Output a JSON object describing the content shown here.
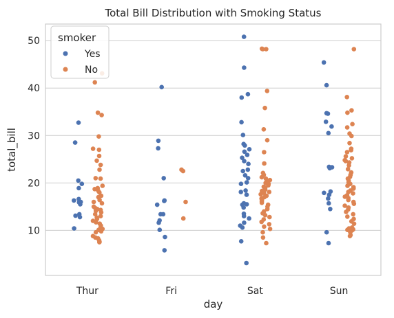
{
  "chart_data": {
    "type": "scatter",
    "subtype": "strip",
    "title": "Total Bill Distribution with Smoking Status",
    "xlabel": "day",
    "ylabel": "total_bill",
    "categories": [
      "Thur",
      "Fri",
      "Sat",
      "Sun"
    ],
    "ylim": [
      0.5,
      53.5
    ],
    "yticks": [
      10,
      20,
      30,
      40,
      50
    ],
    "grid": true,
    "grid_axis": "y",
    "legend": {
      "title": "smoker",
      "placement": "top-left",
      "entries": [
        "Yes",
        "No"
      ]
    },
    "series": [
      {
        "name": "Yes",
        "color": "#4c72b0",
        "points": [
          [
            "Thur",
            32.7
          ],
          [
            "Thur",
            28.5
          ],
          [
            "Thur",
            20.5
          ],
          [
            "Thur",
            19.8
          ],
          [
            "Thur",
            18.9
          ],
          [
            "Thur",
            16.6
          ],
          [
            "Thur",
            16.3
          ],
          [
            "Thur",
            16.0
          ],
          [
            "Thur",
            15.9
          ],
          [
            "Thur",
            15.5
          ],
          [
            "Thur",
            13.4
          ],
          [
            "Thur",
            13.1
          ],
          [
            "Thur",
            12.8
          ],
          [
            "Thur",
            10.4
          ],
          [
            "Fri",
            40.2
          ],
          [
            "Fri",
            28.9
          ],
          [
            "Fri",
            27.3
          ],
          [
            "Fri",
            21.0
          ],
          [
            "Fri",
            16.3
          ],
          [
            "Fri",
            16.2
          ],
          [
            "Fri",
            15.4
          ],
          [
            "Fri",
            13.4
          ],
          [
            "Fri",
            13.4
          ],
          [
            "Fri",
            12.1
          ],
          [
            "Fri",
            11.6
          ],
          [
            "Fri",
            10.1
          ],
          [
            "Fri",
            8.6
          ],
          [
            "Fri",
            5.8
          ],
          [
            "Sat",
            50.8
          ],
          [
            "Sat",
            44.3
          ],
          [
            "Sat",
            38.7
          ],
          [
            "Sat",
            38.0
          ],
          [
            "Sat",
            32.8
          ],
          [
            "Sat",
            30.1
          ],
          [
            "Sat",
            28.2
          ],
          [
            "Sat",
            27.9
          ],
          [
            "Sat",
            27.1
          ],
          [
            "Sat",
            26.6
          ],
          [
            "Sat",
            25.9
          ],
          [
            "Sat",
            25.3
          ],
          [
            "Sat",
            24.6
          ],
          [
            "Sat",
            24.0
          ],
          [
            "Sat",
            22.8
          ],
          [
            "Sat",
            22.5
          ],
          [
            "Sat",
            21.6
          ],
          [
            "Sat",
            21.0
          ],
          [
            "Sat",
            20.1
          ],
          [
            "Sat",
            19.8
          ],
          [
            "Sat",
            18.4
          ],
          [
            "Sat",
            18.1
          ],
          [
            "Sat",
            17.5
          ],
          [
            "Sat",
            15.7
          ],
          [
            "Sat",
            15.5
          ],
          [
            "Sat",
            15.4
          ],
          [
            "Sat",
            14.8
          ],
          [
            "Sat",
            13.5
          ],
          [
            "Sat",
            13.0
          ],
          [
            "Sat",
            12.5
          ],
          [
            "Sat",
            11.6
          ],
          [
            "Sat",
            11.0
          ],
          [
            "Sat",
            10.6
          ],
          [
            "Sat",
            7.7
          ],
          [
            "Sat",
            3.1
          ],
          [
            "Sun",
            45.4
          ],
          [
            "Sun",
            40.6
          ],
          [
            "Sun",
            34.7
          ],
          [
            "Sun",
            34.6
          ],
          [
            "Sun",
            32.9
          ],
          [
            "Sun",
            31.9
          ],
          [
            "Sun",
            30.5
          ],
          [
            "Sun",
            23.4
          ],
          [
            "Sun",
            23.3
          ],
          [
            "Sun",
            23.1
          ],
          [
            "Sun",
            18.2
          ],
          [
            "Sun",
            17.9
          ],
          [
            "Sun",
            17.5
          ],
          [
            "Sun",
            16.7
          ],
          [
            "Sun",
            15.7
          ],
          [
            "Sun",
            14.5
          ],
          [
            "Sun",
            9.6
          ],
          [
            "Sun",
            7.3
          ]
        ]
      },
      {
        "name": "No",
        "color": "#dd8452",
        "points": [
          [
            "Thur",
            43.1
          ],
          [
            "Thur",
            41.2
          ],
          [
            "Thur",
            34.8
          ],
          [
            "Thur",
            34.3
          ],
          [
            "Thur",
            29.8
          ],
          [
            "Thur",
            27.2
          ],
          [
            "Thur",
            27.0
          ],
          [
            "Thur",
            25.7
          ],
          [
            "Thur",
            24.7
          ],
          [
            "Thur",
            23.8
          ],
          [
            "Thur",
            22.8
          ],
          [
            "Thur",
            21.0
          ],
          [
            "Thur",
            20.9
          ],
          [
            "Thur",
            19.4
          ],
          [
            "Thur",
            18.9
          ],
          [
            "Thur",
            18.7
          ],
          [
            "Thur",
            18.3
          ],
          [
            "Thur",
            18.0
          ],
          [
            "Thur",
            17.3
          ],
          [
            "Thur",
            17.0
          ],
          [
            "Thur",
            16.4
          ],
          [
            "Thur",
            16.0
          ],
          [
            "Thur",
            15.7
          ],
          [
            "Thur",
            15.0
          ],
          [
            "Thur",
            14.7
          ],
          [
            "Thur",
            14.5
          ],
          [
            "Thur",
            14.3
          ],
          [
            "Thur",
            14.1
          ],
          [
            "Thur",
            13.8
          ],
          [
            "Thur",
            13.4
          ],
          [
            "Thur",
            13.0
          ],
          [
            "Thur",
            12.7
          ],
          [
            "Thur",
            12.4
          ],
          [
            "Thur",
            12.0
          ],
          [
            "Thur",
            11.7
          ],
          [
            "Thur",
            11.4
          ],
          [
            "Thur",
            11.0
          ],
          [
            "Thur",
            10.6
          ],
          [
            "Thur",
            10.3
          ],
          [
            "Thur",
            10.1
          ],
          [
            "Thur",
            9.8
          ],
          [
            "Thur",
            9.6
          ],
          [
            "Thur",
            8.8
          ],
          [
            "Thur",
            8.5
          ],
          [
            "Thur",
            8.3
          ],
          [
            "Thur",
            7.9
          ],
          [
            "Thur",
            7.6
          ],
          [
            "Thur",
            7.5
          ],
          [
            "Fri",
            22.8
          ],
          [
            "Fri",
            22.5
          ],
          [
            "Fri",
            16.0
          ],
          [
            "Fri",
            12.5
          ],
          [
            "Sat",
            48.3
          ],
          [
            "Sat",
            48.2
          ],
          [
            "Sat",
            48.2
          ],
          [
            "Sat",
            39.4
          ],
          [
            "Sat",
            35.8
          ],
          [
            "Sat",
            31.3
          ],
          [
            "Sat",
            29.0
          ],
          [
            "Sat",
            26.5
          ],
          [
            "Sat",
            24.1
          ],
          [
            "Sat",
            22.1
          ],
          [
            "Sat",
            21.7
          ],
          [
            "Sat",
            21.2
          ],
          [
            "Sat",
            20.9
          ],
          [
            "Sat",
            20.6
          ],
          [
            "Sat",
            20.3
          ],
          [
            "Sat",
            20.0
          ],
          [
            "Sat",
            19.8
          ],
          [
            "Sat",
            19.5
          ],
          [
            "Sat",
            19.2
          ],
          [
            "Sat",
            19.0
          ],
          [
            "Sat",
            18.6
          ],
          [
            "Sat",
            18.3
          ],
          [
            "Sat",
            18.1
          ],
          [
            "Sat",
            17.9
          ],
          [
            "Sat",
            17.6
          ],
          [
            "Sat",
            17.3
          ],
          [
            "Sat",
            17.0
          ],
          [
            "Sat",
            16.7
          ],
          [
            "Sat",
            16.4
          ],
          [
            "Sat",
            16.1
          ],
          [
            "Sat",
            15.8
          ],
          [
            "Sat",
            15.4
          ],
          [
            "Sat",
            15.0
          ],
          [
            "Sat",
            14.5
          ],
          [
            "Sat",
            14.0
          ],
          [
            "Sat",
            13.6
          ],
          [
            "Sat",
            13.2
          ],
          [
            "Sat",
            12.8
          ],
          [
            "Sat",
            12.3
          ],
          [
            "Sat",
            11.8
          ],
          [
            "Sat",
            11.3
          ],
          [
            "Sat",
            10.8
          ],
          [
            "Sat",
            10.3
          ],
          [
            "Sat",
            9.6
          ],
          [
            "Sat",
            8.5
          ],
          [
            "Sat",
            7.3
          ],
          [
            "Sun",
            48.2
          ],
          [
            "Sun",
            38.1
          ],
          [
            "Sun",
            35.3
          ],
          [
            "Sun",
            34.8
          ],
          [
            "Sun",
            32.4
          ],
          [
            "Sun",
            31.7
          ],
          [
            "Sun",
            30.4
          ],
          [
            "Sun",
            29.9
          ],
          [
            "Sun",
            28.4
          ],
          [
            "Sun",
            27.2
          ],
          [
            "Sun",
            26.9
          ],
          [
            "Sun",
            26.5
          ],
          [
            "Sun",
            25.6
          ],
          [
            "Sun",
            25.2
          ],
          [
            "Sun",
            24.8
          ],
          [
            "Sun",
            24.6
          ],
          [
            "Sun",
            24.3
          ],
          [
            "Sun",
            23.7
          ],
          [
            "Sun",
            22.9
          ],
          [
            "Sun",
            22.2
          ],
          [
            "Sun",
            21.7
          ],
          [
            "Sun",
            21.3
          ],
          [
            "Sun",
            20.9
          ],
          [
            "Sun",
            20.5
          ],
          [
            "Sun",
            20.1
          ],
          [
            "Sun",
            19.8
          ],
          [
            "Sun",
            19.4
          ],
          [
            "Sun",
            19.1
          ],
          [
            "Sun",
            18.8
          ],
          [
            "Sun",
            18.4
          ],
          [
            "Sun",
            18.1
          ],
          [
            "Sun",
            17.8
          ],
          [
            "Sun",
            17.4
          ],
          [
            "Sun",
            17.1
          ],
          [
            "Sun",
            16.8
          ],
          [
            "Sun",
            16.4
          ],
          [
            "Sun",
            16.0
          ],
          [
            "Sun",
            15.6
          ],
          [
            "Sun",
            15.2
          ],
          [
            "Sun",
            14.8
          ],
          [
            "Sun",
            14.4
          ],
          [
            "Sun",
            13.9
          ],
          [
            "Sun",
            13.4
          ],
          [
            "Sun",
            12.9
          ],
          [
            "Sun",
            12.4
          ],
          [
            "Sun",
            11.9
          ],
          [
            "Sun",
            11.4
          ],
          [
            "Sun",
            10.6
          ],
          [
            "Sun",
            10.4
          ],
          [
            "Sun",
            10.3
          ],
          [
            "Sun",
            10.2
          ],
          [
            "Sun",
            10.1
          ],
          [
            "Sun",
            10.0
          ],
          [
            "Sun",
            9.6
          ],
          [
            "Sun",
            9.0
          ],
          [
            "Sun",
            8.8
          ]
        ]
      }
    ]
  }
}
